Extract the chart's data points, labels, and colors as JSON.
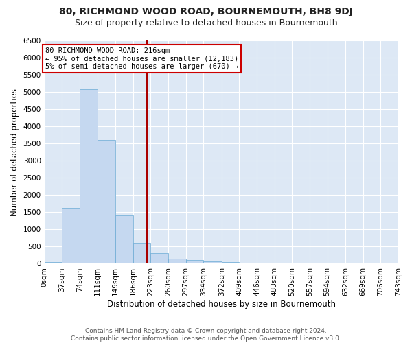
{
  "title": "80, RICHMOND WOOD ROAD, BOURNEMOUTH, BH8 9DJ",
  "subtitle": "Size of property relative to detached houses in Bournemouth",
  "xlabel": "Distribution of detached houses by size in Bournemouth",
  "ylabel": "Number of detached properties",
  "bin_edges": [
    0,
    37,
    74,
    111,
    149,
    186,
    223,
    260,
    297,
    334,
    372,
    409,
    446,
    483,
    520,
    557,
    594,
    632,
    669,
    706,
    743
  ],
  "bin_counts": [
    50,
    1630,
    5080,
    3600,
    1400,
    600,
    300,
    150,
    100,
    70,
    50,
    30,
    20,
    20,
    15,
    10,
    8,
    5,
    5,
    3
  ],
  "bar_color": "#c5d8f0",
  "bar_edge_color": "#6aaad4",
  "property_size": 216,
  "vline_color": "#aa0000",
  "annotation_text": "80 RICHMOND WOOD ROAD: 216sqm\n← 95% of detached houses are smaller (12,183)\n5% of semi-detached houses are larger (670) →",
  "annotation_box_color": "#ffffff",
  "annotation_box_edge_color": "#cc0000",
  "footer_text": "Contains HM Land Registry data © Crown copyright and database right 2024.\nContains public sector information licensed under the Open Government Licence v3.0.",
  "bg_color": "#ffffff",
  "plot_bg_color": "#dde8f5",
  "ylim": [
    0,
    6500
  ],
  "title_fontsize": 10,
  "subtitle_fontsize": 9,
  "xlabel_fontsize": 8.5,
  "ylabel_fontsize": 8.5,
  "tick_fontsize": 7.5,
  "annotation_fontsize": 7.5,
  "footer_fontsize": 6.5
}
